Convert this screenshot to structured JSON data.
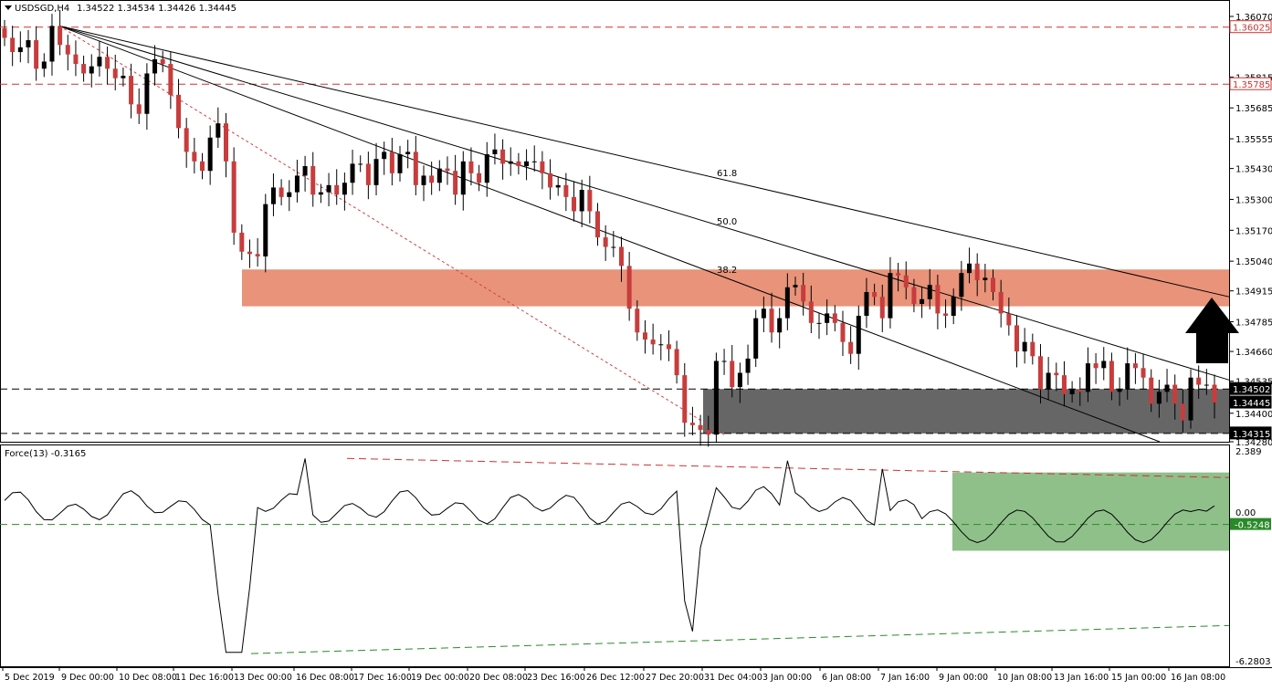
{
  "chart_data": {
    "type": "candlestick",
    "symbol": "USDSGD,H4",
    "ohlc_label": "1.34522 1.34534 1.34426 1.34445",
    "price_axis": {
      "ylim": [
        1.3428,
        1.3607
      ],
      "ticks": [
        "1.36070",
        "1.35815",
        "1.35685",
        "1.35555",
        "1.35430",
        "1.35300",
        "1.35170",
        "1.35040",
        "1.34915",
        "1.34785",
        "1.34660",
        "1.34535",
        "1.34400",
        "1.34280"
      ],
      "tick_values": [
        1.3607,
        1.35815,
        1.35685,
        1.35555,
        1.3543,
        1.353,
        1.3517,
        1.3504,
        1.34915,
        1.34785,
        1.3466,
        1.34535,
        1.344,
        1.3428
      ]
    },
    "levels": [
      {
        "label": "1.36025",
        "value": 1.36025,
        "style": "red-dashed",
        "color": "#cc3333"
      },
      {
        "label": "1.35785",
        "value": 1.35785,
        "style": "red-dashed",
        "color": "#cc3333"
      },
      {
        "label": "1.34502",
        "value": 1.34502,
        "style": "black-dashed",
        "color": "#000000"
      },
      {
        "label": "1.34445",
        "value": 1.34445,
        "style": "current",
        "color": "#000000"
      },
      {
        "label": "1.34315",
        "value": 1.34315,
        "style": "black-dashed",
        "color": "#000000"
      }
    ],
    "fib_labels": [
      "61.8",
      "50.0",
      "38.2"
    ],
    "resistance_zone": {
      "from": 1.3485,
      "to": 1.35005,
      "color": "#e8937a"
    },
    "support_zone": {
      "from": 1.34315,
      "to": 1.34502,
      "color": "#666666"
    },
    "arrow_direction": "up",
    "time_labels": [
      "5 Dec 2019",
      "9 Dec 00:00",
      "10 Dec 08:00",
      "11 Dec 16:00",
      "13 Dec 00:00",
      "16 Dec 08:00",
      "17 Dec 16:00",
      "19 Dec 00:00",
      "20 Dec 08:00",
      "23 Dec 16:00",
      "26 Dec 12:00",
      "27 Dec 20:00",
      "31 Dec 04:00",
      "3 Jan 00:00",
      "6 Jan 08:00",
      "7 Jan 16:00",
      "9 Jan 00:00",
      "10 Jan 08:00",
      "13 Jan 16:00",
      "15 Jan 00:00",
      "16 Jan 08:00"
    ],
    "closes": [
      1.3598,
      1.3592,
      1.3594,
      1.3597,
      1.3585,
      1.3588,
      1.3603,
      1.3595,
      1.3591,
      1.3587,
      1.3583,
      1.3586,
      1.359,
      1.3585,
      1.3581,
      1.3582,
      1.357,
      1.3566,
      1.3583,
      1.3589,
      1.3587,
      1.3574,
      1.356,
      1.355,
      1.3546,
      1.3542,
      1.3556,
      1.3562,
      1.3546,
      1.3516,
      1.3508,
      1.3507,
      1.3506,
      1.3528,
      1.3535,
      1.3531,
      1.3533,
      1.354,
      1.3544,
      1.3532,
      1.3533,
      1.3536,
      1.3532,
      1.3537,
      1.3545,
      1.3545,
      1.3536,
      1.3547,
      1.355,
      1.3541,
      1.3549,
      1.355,
      1.3536,
      1.354,
      1.3537,
      1.3543,
      1.3542,
      1.3532,
      1.3546,
      1.3541,
      1.3537,
      1.3549,
      1.3551,
      1.3545,
      1.3546,
      1.3544,
      1.3546,
      1.3546,
      1.3541,
      1.3535,
      1.3536,
      1.3531,
      1.3525,
      1.3534,
      1.3525,
      1.3514,
      1.351,
      1.351,
      1.3502,
      1.3484,
      1.3474,
      1.3471,
      1.3469,
      1.3469,
      1.3467,
      1.3456,
      1.3436,
      1.3435,
      1.3433,
      1.3431,
      1.3462,
      1.3462,
      1.3451,
      1.3457,
      1.3463,
      1.348,
      1.3484,
      1.3474,
      1.348,
      1.3493,
      1.3494,
      1.3487,
      1.3478,
      1.3478,
      1.3482,
      1.3478,
      1.347,
      1.3465,
      1.3481,
      1.3491,
      1.3489,
      1.348,
      1.3499,
      1.3498,
      1.3493,
      1.3486,
      1.3488,
      1.3494,
      1.3482,
      1.3481,
      1.3489,
      1.3499,
      1.3503,
      1.3496,
      1.3497,
      1.3491,
      1.3482,
      1.3477,
      1.3466,
      1.347,
      1.3464,
      1.345,
      1.3457,
      1.3456,
      1.3448,
      1.345,
      1.3449,
      1.3461,
      1.3459,
      1.3462,
      1.3449,
      1.345,
      1.3461,
      1.3459,
      1.3455,
      1.3444,
      1.3449,
      1.3452,
      1.3444,
      1.3437,
      1.3455,
      1.3452,
      1.3452,
      1.34445
    ],
    "force_indicator": {
      "label": "Force(13) -0.3165",
      "ticks": [
        "2.389",
        "0.00",
        "-6.2803"
      ],
      "ylim": [
        -6.2803,
        2.389
      ],
      "level_label": "-0.5248",
      "level_value": -0.5248
    }
  }
}
